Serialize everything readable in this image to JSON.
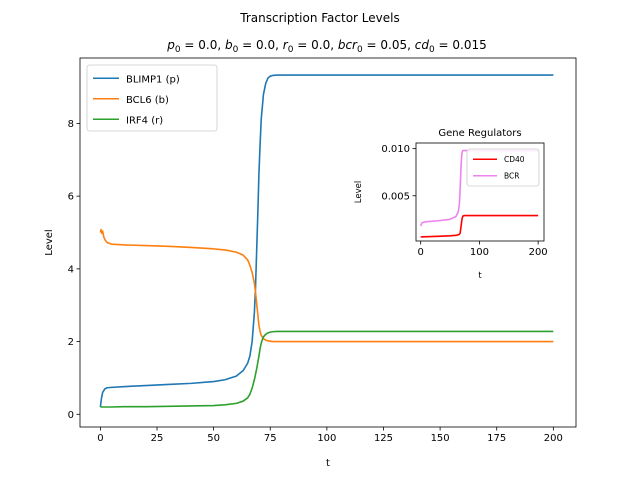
{
  "figure": {
    "title": "Transcription Factor Levels",
    "subtitle_parts": [
      {
        "sym": "p",
        "sub": "0",
        "val": " = 0.0, "
      },
      {
        "sym": "b",
        "sub": "0",
        "val": " = 0.0, "
      },
      {
        "sym": "r",
        "sub": "0",
        "val": " = 0.0, "
      },
      {
        "sym": "bcr",
        "sub": "0",
        "val": " = 0.05, "
      },
      {
        "sym": "cd",
        "sub": "0",
        "val": " = 0.015"
      }
    ]
  },
  "chart_data": [
    {
      "type": "line",
      "title": "",
      "xlabel": "t",
      "ylabel": "Level",
      "xlim": [
        -9,
        210
      ],
      "ylim": [
        -0.35,
        9.8
      ],
      "xticks": [
        0,
        25,
        50,
        75,
        100,
        125,
        150,
        175,
        200
      ],
      "yticks": [
        0,
        2,
        4,
        6,
        8
      ],
      "legend": "top-left",
      "grid": false,
      "series": [
        {
          "name": "BLIMP1 (p)",
          "color": "#1f77b4",
          "x": [
            0,
            0.5,
            1,
            2,
            3,
            5,
            10,
            20,
            30,
            40,
            50,
            55,
            60,
            63,
            65,
            66,
            67,
            68,
            68.5,
            69,
            69.5,
            70,
            70.5,
            71,
            72,
            73,
            74,
            75,
            76,
            78,
            80,
            85,
            90,
            100,
            125,
            150,
            175,
            200
          ],
          "y": [
            0.2,
            0.45,
            0.6,
            0.7,
            0.73,
            0.74,
            0.76,
            0.79,
            0.82,
            0.85,
            0.9,
            0.95,
            1.05,
            1.2,
            1.4,
            1.6,
            2.0,
            2.8,
            3.5,
            4.5,
            5.5,
            6.6,
            7.4,
            8.1,
            8.8,
            9.1,
            9.25,
            9.3,
            9.32,
            9.33,
            9.33,
            9.33,
            9.33,
            9.33,
            9.33,
            9.33,
            9.33,
            9.33
          ]
        },
        {
          "name": "BCL6 (b)",
          "color": "#ff7f0e",
          "x": [
            0,
            0.3,
            0.6,
            1,
            1.5,
            2,
            3,
            4,
            5,
            10,
            20,
            30,
            40,
            50,
            55,
            60,
            63,
            65,
            66,
            67,
            68,
            68.5,
            69,
            69.5,
            70,
            70.5,
            71,
            72,
            73,
            74,
            75,
            76,
            78,
            80,
            85,
            90,
            100,
            125,
            150,
            175,
            200
          ],
          "y": [
            5.0,
            5.08,
            4.98,
            5.04,
            4.88,
            4.8,
            4.72,
            4.7,
            4.68,
            4.66,
            4.64,
            4.62,
            4.59,
            4.55,
            4.52,
            4.46,
            4.38,
            4.25,
            4.1,
            3.9,
            3.6,
            3.35,
            3.05,
            2.75,
            2.45,
            2.28,
            2.17,
            2.08,
            2.04,
            2.02,
            2.01,
            2.0,
            2.0,
            2.0,
            2.0,
            2.0,
            2.0,
            2.0,
            2.0,
            2.0,
            2.0
          ]
        },
        {
          "name": "IRF4 (r)",
          "color": "#2ca02c",
          "x": [
            0,
            5,
            10,
            20,
            30,
            40,
            50,
            55,
            60,
            63,
            65,
            66,
            67,
            68,
            69,
            70,
            70.5,
            71,
            71.5,
            72,
            73,
            74,
            75,
            76,
            78,
            80,
            85,
            90,
            100,
            125,
            150,
            175,
            200
          ],
          "y": [
            0.2,
            0.2,
            0.21,
            0.21,
            0.22,
            0.23,
            0.24,
            0.26,
            0.3,
            0.36,
            0.45,
            0.55,
            0.72,
            0.95,
            1.25,
            1.6,
            1.8,
            1.95,
            2.05,
            2.13,
            2.2,
            2.24,
            2.26,
            2.27,
            2.28,
            2.28,
            2.28,
            2.28,
            2.28,
            2.28,
            2.28,
            2.28,
            2.28
          ]
        }
      ]
    },
    {
      "type": "line",
      "title": "Gene Regulators",
      "xlabel": "t",
      "ylabel": "Level",
      "xlim": [
        -8,
        210
      ],
      "ylim": [
        0.0002,
        0.0106
      ],
      "xticks": [
        0,
        100,
        200
      ],
      "yticks": [
        0.005,
        0.01
      ],
      "ytick_labels": [
        "0.005",
        "0.010"
      ],
      "legend": "top-right",
      "grid": false,
      "series": [
        {
          "name": "CD40",
          "color": "#ff0000",
          "x": [
            0,
            10,
            30,
            50,
            60,
            65,
            67,
            68,
            69,
            70,
            71,
            72,
            74,
            76,
            80,
            100,
            150,
            200
          ],
          "y": [
            0.00063,
            0.00066,
            0.0007,
            0.00075,
            0.0008,
            0.00088,
            0.001,
            0.0014,
            0.0019,
            0.0024,
            0.0027,
            0.00285,
            0.0029,
            0.0029,
            0.0029,
            0.0029,
            0.0029,
            0.0029
          ]
        },
        {
          "name": "BCR",
          "color": "#ee82ee",
          "x": [
            0,
            2,
            5,
            10,
            30,
            50,
            60,
            64,
            66,
            67,
            68,
            69,
            70,
            71,
            72,
            74,
            76,
            80,
            100,
            150,
            200
          ],
          "y": [
            0.0018,
            0.0021,
            0.0022,
            0.00225,
            0.00235,
            0.0025,
            0.0028,
            0.0033,
            0.0042,
            0.0055,
            0.007,
            0.0085,
            0.0094,
            0.0097,
            0.0098,
            0.0098,
            0.0098,
            0.0098,
            0.0098,
            0.0098,
            0.0098
          ]
        }
      ]
    }
  ]
}
